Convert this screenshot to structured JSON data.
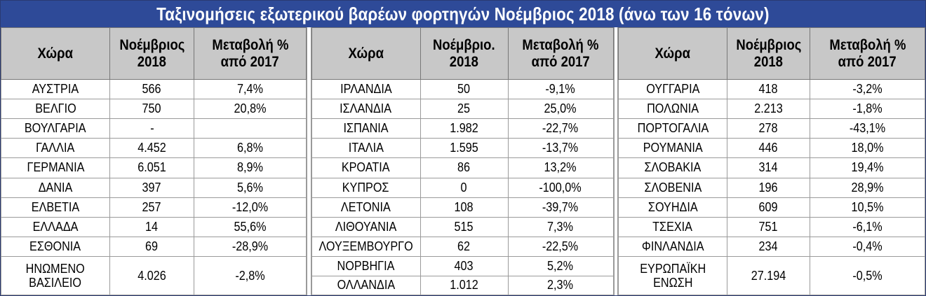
{
  "title": "Ταξινομήσεις εξωτερικού βαρέων φορτηγών Νοέμβριος 2018 (άνω των 16 τόνων)",
  "sections": [
    {
      "headers": {
        "country": "Χώρα",
        "month_line1": "Νοέμβριος",
        "month_line2": "2018",
        "change_line1": "Μεταβολή %",
        "change_line2": "από 2017"
      },
      "rows": [
        {
          "country": "ΑΥΣΤΡΙΑ",
          "value": "566",
          "change": "7,4%"
        },
        {
          "country": "ΒΕΛΓΙΟ",
          "value": "750",
          "change": "20,8%"
        },
        {
          "country": "ΒΟΥΛΓΑΡΙΑ",
          "value": "-",
          "change": ""
        },
        {
          "country": "ΓΑΛΛΙΑ",
          "value": "4.452",
          "change": "6,8%"
        },
        {
          "country": "ΓΕΡΜΑΝΙΑ",
          "value": "6.051",
          "change": "8,9%"
        },
        {
          "country": "ΔΑΝΙΑ",
          "value": "397",
          "change": "5,6%"
        },
        {
          "country": "ΕΛΒΕΤΙΑ",
          "value": "257",
          "change": "-12,0%"
        },
        {
          "country": "ΕΛΛΑΔΑ",
          "value": "14",
          "change": "55,6%"
        },
        {
          "country": "ΕΣΘΟΝΙΑ",
          "value": "69",
          "change": "-28,9%"
        },
        {
          "country_line1": "ΗΝΩΜΕΝΟ",
          "country_line2": "ΒΑΣΙΛΕΙΟ",
          "value": "4.026",
          "change": "-2,8%"
        }
      ]
    },
    {
      "headers": {
        "country": "Χώρα",
        "month_line1": "Νοέμβριο.",
        "month_line2": "2018",
        "change_line1": "Μεταβολή %",
        "change_line2": "από 2017"
      },
      "rows": [
        {
          "country": "ΙΡΛΑΝΔΙΑ",
          "value": "50",
          "change": "-9,1%"
        },
        {
          "country": "ΙΣΛΑΝΔΙΑ",
          "value": "25",
          "change": "25,0%"
        },
        {
          "country": "ΙΣΠΑΝΙΑ",
          "value": "1.982",
          "change": "-22,7%"
        },
        {
          "country": "ΙΤΑΛΙΑ",
          "value": "1.595",
          "change": "-13,7%"
        },
        {
          "country": "ΚΡΟΑΤΙΑ",
          "value": "86",
          "change": "13,2%"
        },
        {
          "country": "ΚΥΠΡΟΣ",
          "value": "0",
          "change": "-100,0%"
        },
        {
          "country": "ΛΕΤΟΝΙΑ",
          "value": "108",
          "change": "-39,7%"
        },
        {
          "country": "ΛΙΘΟΥΑΝΙΑ",
          "value": "515",
          "change": "7,3%"
        },
        {
          "country": "ΛΟΥΞΕΜΒΟΥΡΓΟ",
          "value": "62",
          "change": "-22,5%"
        },
        {
          "country": "ΝΟΡΒΗΓΙΑ",
          "value": "403",
          "change": "5,2%"
        },
        {
          "country": "ΟΛΛΑΝΔΙΑ",
          "value": "1.012",
          "change": "2,3%"
        }
      ]
    },
    {
      "headers": {
        "country": "Χώρα",
        "month_line1": "Νοέμβριος",
        "month_line2": "2018",
        "change_line1": "Μεταβολή %",
        "change_line2": "από 2017"
      },
      "rows": [
        {
          "country": "ΟΥΓΓΑΡΙΑ",
          "value": "418",
          "change": "-3,2%"
        },
        {
          "country": "ΠΟΛΩΝΙΑ",
          "value": "2.213",
          "change": "-1,8%"
        },
        {
          "country": "ΠΟΡΤΟΓΑΛΙΑ",
          "value": "278",
          "change": "-43,1%"
        },
        {
          "country": "ΡΟΥΜΑΝΙΑ",
          "value": "446",
          "change": "18,0%"
        },
        {
          "country": "ΣΛΟΒΑΚΙΑ",
          "value": "314",
          "change": "19,4%"
        },
        {
          "country": "ΣΛΟΒΕΝΙΑ",
          "value": "196",
          "change": "28,9%"
        },
        {
          "country": "ΣΟΥΗΔΙΑ",
          "value": "609",
          "change": "10,5%"
        },
        {
          "country": "ΤΣΕΧΙΑ",
          "value": "751",
          "change": "-6,1%"
        },
        {
          "country": "ΦΙΝΛΑΝΔΙΑ",
          "value": "234",
          "change": "-0,4%"
        },
        {
          "country_line1": "ΕΥΡΩΠΑΪΚΗ",
          "country_line2": "ΕΝΩΣΗ",
          "value": "27.194",
          "change": "-0,5%"
        }
      ]
    }
  ]
}
